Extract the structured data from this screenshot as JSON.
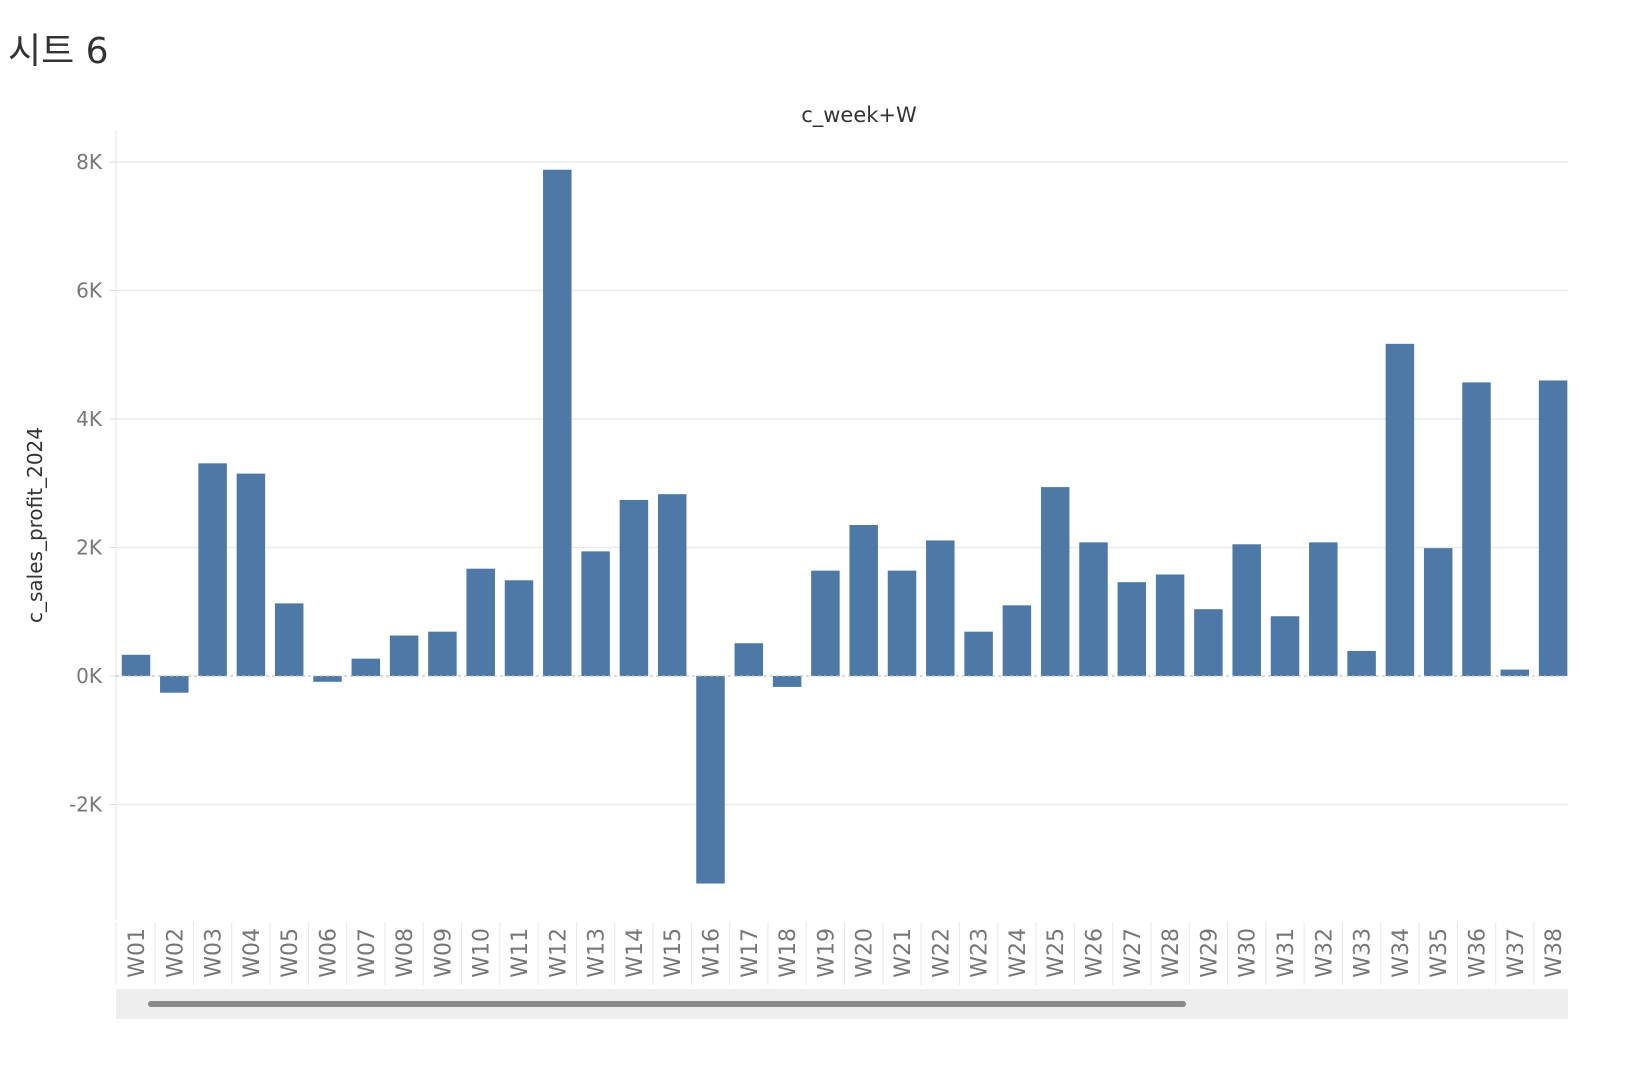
{
  "sheet": {
    "title": "시트 6"
  },
  "chart_data": {
    "type": "bar",
    "header": "c_week+W",
    "ylabel": "c_sales_profit_2024",
    "ylim": [
      -3800,
      8500
    ],
    "yticks": [
      {
        "value": 8000,
        "label": "8K"
      },
      {
        "value": 6000,
        "label": "6K"
      },
      {
        "value": 4000,
        "label": "4K"
      },
      {
        "value": 2000,
        "label": "2K"
      },
      {
        "value": 0,
        "label": "0K"
      },
      {
        "value": -2000,
        "label": "-2K"
      }
    ],
    "grid": true,
    "bar_color": "#4e79a7",
    "categories": [
      "W01",
      "W02",
      "W03",
      "W04",
      "W05",
      "W06",
      "W07",
      "W08",
      "W09",
      "W10",
      "W11",
      "W12",
      "W13",
      "W14",
      "W15",
      "W16",
      "W17",
      "W18",
      "W19",
      "W20",
      "W21",
      "W22",
      "W23",
      "W24",
      "W25",
      "W26",
      "W27",
      "W28",
      "W29",
      "W30",
      "W31",
      "W32",
      "W33",
      "W34",
      "W35",
      "W36",
      "W37",
      "W38"
    ],
    "values": [
      330,
      -260,
      3310,
      3150,
      1130,
      -90,
      270,
      630,
      690,
      1670,
      1490,
      7880,
      1940,
      2740,
      2830,
      -3230,
      510,
      -170,
      1640,
      2350,
      1640,
      2110,
      690,
      1100,
      2940,
      2080,
      1460,
      1580,
      1040,
      2050,
      930,
      2080,
      390,
      5170,
      1990,
      4570,
      100,
      4600
    ]
  },
  "scrollbar": {
    "orientation": "horizontal"
  }
}
